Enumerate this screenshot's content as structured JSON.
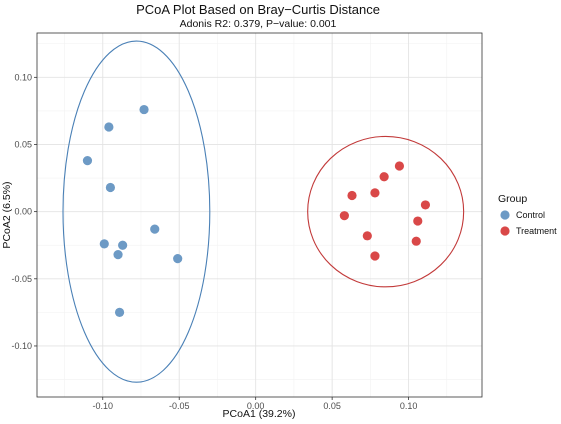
{
  "chart_data": {
    "type": "scatter",
    "title": "PCoA Plot Based on Bray−Curtis Distance",
    "subtitle": "Adonis R2: 0.379, P−value: 0.001",
    "xlabel": "PCoA1 (39.2%)",
    "ylabel": "PCoA2 (6.5%)",
    "xlim": [
      -0.143,
      0.148
    ],
    "ylim": [
      -0.138,
      0.133
    ],
    "x_ticks": [
      -0.1,
      -0.05,
      0.0,
      0.05,
      0.1
    ],
    "x_tick_labels": [
      "-0.10",
      "-0.05",
      "0.00",
      "0.05",
      "0.10"
    ],
    "y_ticks": [
      -0.1,
      -0.05,
      0.0,
      0.05,
      0.1
    ],
    "y_tick_labels": [
      "-0.10",
      "-0.05",
      "0.00",
      "0.05",
      "0.10"
    ],
    "grid": true,
    "legend": {
      "title": "Group",
      "placement": "right"
    },
    "series": [
      {
        "name": "Control",
        "color": "#6d9ac5",
        "ellipse_color": "#4a80b6",
        "points": [
          {
            "x": -0.073,
            "y": 0.076
          },
          {
            "x": -0.096,
            "y": 0.063
          },
          {
            "x": -0.11,
            "y": 0.038
          },
          {
            "x": -0.095,
            "y": 0.018
          },
          {
            "x": -0.066,
            "y": -0.013
          },
          {
            "x": -0.099,
            "y": -0.024
          },
          {
            "x": -0.087,
            "y": -0.025
          },
          {
            "x": -0.09,
            "y": -0.032
          },
          {
            "x": -0.051,
            "y": -0.035
          },
          {
            "x": -0.089,
            "y": -0.075
          }
        ],
        "ellipse": {
          "cx": -0.078,
          "cy": 0.0,
          "rx": 0.048,
          "ry": 0.127
        }
      },
      {
        "name": "Treatment",
        "color": "#d94848",
        "ellipse_color": "#c23a3a",
        "points": [
          {
            "x": 0.094,
            "y": 0.034
          },
          {
            "x": 0.084,
            "y": 0.026
          },
          {
            "x": 0.078,
            "y": 0.014
          },
          {
            "x": 0.063,
            "y": 0.012
          },
          {
            "x": 0.111,
            "y": 0.005
          },
          {
            "x": 0.058,
            "y": -0.003
          },
          {
            "x": 0.106,
            "y": -0.007
          },
          {
            "x": 0.073,
            "y": -0.018
          },
          {
            "x": 0.105,
            "y": -0.022
          },
          {
            "x": 0.078,
            "y": -0.033
          }
        ],
        "ellipse": {
          "cx": 0.085,
          "cy": 0.0,
          "rx": 0.051,
          "ry": 0.056
        }
      }
    ]
  }
}
